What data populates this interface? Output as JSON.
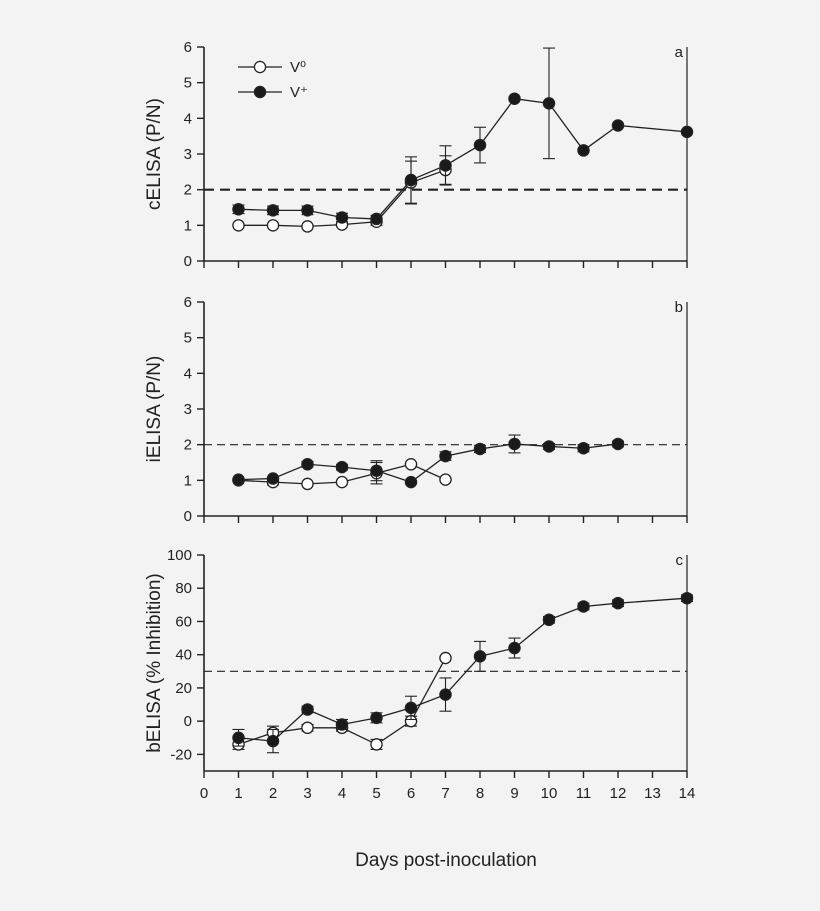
{
  "figure": {
    "xlabel": "Days post-inoculation",
    "colors": {
      "ink": "#222222",
      "open_fill": "#ffffff",
      "filled": "#1a1a1a",
      "background": "#f3f3f3"
    }
  },
  "chart_data": [
    {
      "type": "line",
      "panel_letter": "a",
      "ylabel": "cELISA (P/N)",
      "xlim": [
        0,
        14
      ],
      "ylim": [
        0,
        6
      ],
      "x_ticks": [
        0,
        1,
        2,
        3,
        4,
        5,
        6,
        7,
        8,
        9,
        10,
        11,
        12,
        13,
        14
      ],
      "y_ticks": [
        0,
        1,
        2,
        3,
        4,
        5,
        6
      ],
      "show_x_tick_labels": false,
      "threshold": {
        "value": 2,
        "style": "dashed-heavy"
      },
      "legend": {
        "position": "top-left",
        "entries": [
          "V⁰",
          "V⁺"
        ]
      },
      "series": [
        {
          "name": "V⁰",
          "marker": "open-circle",
          "x": [
            1,
            2,
            3,
            4,
            5,
            6,
            7
          ],
          "y": [
            1.0,
            1.0,
            0.97,
            1.02,
            1.1,
            2.2,
            2.55
          ],
          "err": [
            0,
            0,
            0,
            0,
            0.1,
            0.6,
            0.4
          ]
        },
        {
          "name": "V⁺",
          "marker": "filled-circle",
          "x": [
            1,
            2,
            3,
            4,
            5,
            6,
            7,
            8,
            9,
            10,
            11,
            12,
            14
          ],
          "y": [
            1.45,
            1.42,
            1.42,
            1.22,
            1.18,
            2.27,
            2.68,
            3.25,
            4.55,
            4.42,
            3.1,
            3.8,
            3.62
          ],
          "err": [
            0.12,
            0.12,
            0.12,
            0.12,
            0.1,
            0.65,
            0.55,
            0.5,
            0,
            1.55,
            0,
            0,
            0
          ]
        }
      ]
    },
    {
      "type": "line",
      "panel_letter": "b",
      "ylabel": "iELISA (P/N)",
      "xlim": [
        0,
        14
      ],
      "ylim": [
        0,
        6
      ],
      "x_ticks": [
        0,
        1,
        2,
        3,
        4,
        5,
        6,
        7,
        8,
        9,
        10,
        11,
        12,
        13,
        14
      ],
      "y_ticks": [
        0,
        1,
        2,
        3,
        4,
        5,
        6
      ],
      "show_x_tick_labels": false,
      "threshold": {
        "value": 2,
        "style": "dashed-light"
      },
      "series": [
        {
          "name": "V⁰",
          "marker": "open-circle",
          "x": [
            1,
            2,
            3,
            4,
            5,
            6,
            7
          ],
          "y": [
            1.0,
            0.95,
            0.9,
            0.95,
            1.2,
            1.45,
            1.02
          ],
          "err": [
            0,
            0.08,
            0,
            0,
            0.3,
            0,
            0
          ]
        },
        {
          "name": "V⁺",
          "marker": "filled-circle",
          "x": [
            1,
            2,
            3,
            4,
            5,
            6,
            7,
            8,
            9,
            10,
            11,
            12
          ],
          "y": [
            1.02,
            1.05,
            1.45,
            1.37,
            1.27,
            0.95,
            1.68,
            1.88,
            2.02,
            1.95,
            1.9,
            2.02
          ],
          "err": [
            0,
            0,
            0.08,
            0.08,
            0.28,
            0,
            0.12,
            0.1,
            0.25,
            0.08,
            0.1,
            0.08
          ]
        }
      ]
    },
    {
      "type": "line",
      "panel_letter": "c",
      "ylabel": "bELISA (% Inhibition)",
      "xlim": [
        0,
        14
      ],
      "ylim": [
        -30,
        100
      ],
      "x_ticks": [
        0,
        1,
        2,
        3,
        4,
        5,
        6,
        7,
        8,
        9,
        10,
        11,
        12,
        13,
        14
      ],
      "y_ticks": [
        -20,
        0,
        20,
        40,
        60,
        80,
        100
      ],
      "show_x_tick_labels": true,
      "threshold": {
        "value": 30,
        "style": "dashed-light"
      },
      "series": [
        {
          "name": "V⁰",
          "marker": "open-circle",
          "x": [
            1,
            2,
            3,
            4,
            5,
            6,
            7
          ],
          "y": [
            -14,
            -7,
            -4,
            -4,
            -14,
            0,
            38
          ],
          "err": [
            3,
            4,
            2,
            2,
            3,
            3,
            0
          ]
        },
        {
          "name": "V⁺",
          "marker": "filled-circle",
          "x": [
            1,
            2,
            3,
            4,
            5,
            6,
            7,
            8,
            9,
            10,
            11,
            12,
            14
          ],
          "y": [
            -10,
            -12,
            7,
            -2,
            2,
            8,
            16,
            39,
            44,
            61,
            69,
            71,
            74
          ],
          "err": [
            5,
            7,
            2,
            3,
            3,
            7,
            10,
            9,
            6,
            2,
            2,
            2,
            2
          ]
        }
      ]
    }
  ]
}
